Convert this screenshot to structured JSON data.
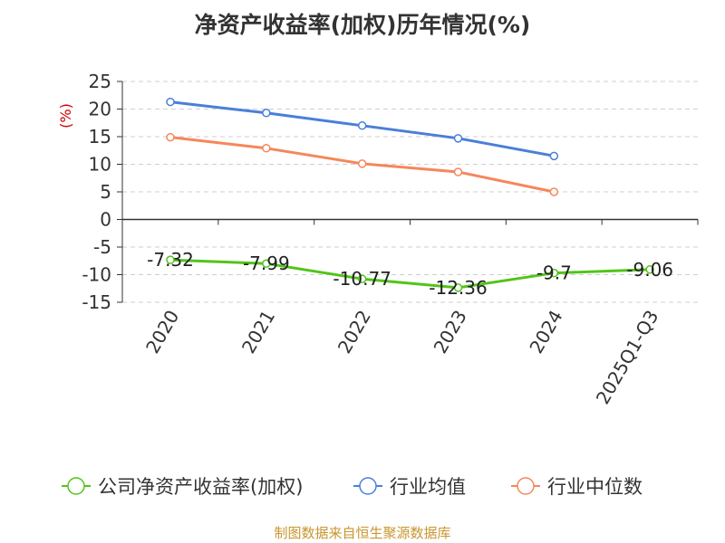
{
  "chart_data": {
    "type": "line",
    "title": "净资产收益率(加权)历年情况(%)",
    "ylabel": "(%)",
    "xlabel": "",
    "categories": [
      "2020",
      "2021",
      "2022",
      "2023",
      "2024",
      "2025Q1-Q3"
    ],
    "ylim": [
      -15,
      25
    ],
    "yticks": [
      25,
      20,
      15,
      10,
      5,
      0,
      -5,
      -10,
      -15
    ],
    "grid": true,
    "legend_position": "bottom",
    "series": [
      {
        "name": "公司净资产收益率(加权)",
        "color": "#52c41a",
        "values": [
          -7.32,
          -7.99,
          -10.77,
          -12.36,
          -9.7,
          -9.06
        ],
        "labels": [
          "-7.32",
          "-7.99",
          "-10.77",
          "-12.36",
          "-9.7",
          "-9.06"
        ],
        "show_labels": true
      },
      {
        "name": "行业均值",
        "color": "#4a7fd8",
        "values": [
          21.3,
          19.3,
          17.0,
          14.7,
          11.5,
          null
        ],
        "show_labels": false
      },
      {
        "name": "行业中位数",
        "color": "#f5875a",
        "values": [
          14.9,
          12.9,
          10.1,
          8.6,
          5.0,
          null
        ],
        "show_labels": false
      }
    ]
  },
  "footer": {
    "source": "制图数据来自恒生聚源数据库"
  }
}
